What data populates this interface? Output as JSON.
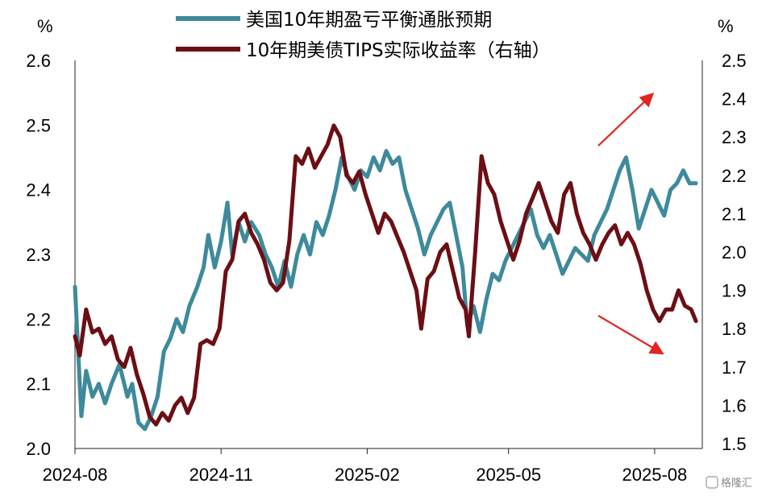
{
  "chart_data": {
    "type": "line",
    "left_unit": "%",
    "right_unit": "%",
    "x_tick_labels": [
      "2024-08",
      "2024-11",
      "2025-02",
      "2025-05",
      "2025-08"
    ],
    "x_tick_dates": [
      "2024-08-01",
      "2024-11-01",
      "2025-02-01",
      "2025-05-01",
      "2025-08-01"
    ],
    "x_range": [
      "2024-08-01",
      "2025-08-31"
    ],
    "y_left_ticks": [
      "2.0",
      "2.1",
      "2.2",
      "2.3",
      "2.4",
      "2.5",
      "2.6"
    ],
    "y_left_range": [
      2.0,
      2.6
    ],
    "y_right_ticks": [
      "1.5",
      "1.6",
      "1.7",
      "1.8",
      "1.9",
      "2.0",
      "2.1",
      "2.2",
      "2.3",
      "2.4",
      "2.5"
    ],
    "y_right_range": [
      1.5,
      2.5
    ],
    "legend_position": "top",
    "series": [
      {
        "name": "美国10年期盈亏平衡通胀预期",
        "axis": "left",
        "color": "#3E8A9C",
        "points": [
          [
            "2024-08-01",
            2.25
          ],
          [
            "2024-08-05",
            2.05
          ],
          [
            "2024-08-08",
            2.12
          ],
          [
            "2024-08-12",
            2.08
          ],
          [
            "2024-08-16",
            2.1
          ],
          [
            "2024-08-20",
            2.07
          ],
          [
            "2024-08-24",
            2.1
          ],
          [
            "2024-08-29",
            2.13
          ],
          [
            "2024-09-03",
            2.08
          ],
          [
            "2024-09-06",
            2.1
          ],
          [
            "2024-09-10",
            2.04
          ],
          [
            "2024-09-14",
            2.03
          ],
          [
            "2024-09-18",
            2.05
          ],
          [
            "2024-09-22",
            2.08
          ],
          [
            "2024-09-26",
            2.15
          ],
          [
            "2024-09-30",
            2.17
          ],
          [
            "2024-10-04",
            2.2
          ],
          [
            "2024-10-08",
            2.18
          ],
          [
            "2024-10-12",
            2.22
          ],
          [
            "2024-10-17",
            2.25
          ],
          [
            "2024-10-21",
            2.28
          ],
          [
            "2024-10-24",
            2.33
          ],
          [
            "2024-10-28",
            2.28
          ],
          [
            "2024-11-01",
            2.32
          ],
          [
            "2024-11-05",
            2.38
          ],
          [
            "2024-11-08",
            2.3
          ],
          [
            "2024-11-12",
            2.35
          ],
          [
            "2024-11-16",
            2.32
          ],
          [
            "2024-11-20",
            2.35
          ],
          [
            "2024-11-25",
            2.33
          ],
          [
            "2024-11-29",
            2.3
          ],
          [
            "2024-12-03",
            2.28
          ],
          [
            "2024-12-07",
            2.25
          ],
          [
            "2024-12-11",
            2.29
          ],
          [
            "2024-12-15",
            2.25
          ],
          [
            "2024-12-19",
            2.3
          ],
          [
            "2024-12-23",
            2.33
          ],
          [
            "2024-12-27",
            2.3
          ],
          [
            "2024-12-31",
            2.35
          ],
          [
            "2025-01-04",
            2.33
          ],
          [
            "2025-01-08",
            2.36
          ],
          [
            "2025-01-12",
            2.4
          ],
          [
            "2025-01-16",
            2.45
          ],
          [
            "2025-01-20",
            2.42
          ],
          [
            "2025-01-24",
            2.4
          ],
          [
            "2025-01-28",
            2.43
          ],
          [
            "2025-02-01",
            2.42
          ],
          [
            "2025-02-05",
            2.45
          ],
          [
            "2025-02-09",
            2.43
          ],
          [
            "2025-02-13",
            2.46
          ],
          [
            "2025-02-17",
            2.44
          ],
          [
            "2025-02-21",
            2.45
          ],
          [
            "2025-02-25",
            2.4
          ],
          [
            "2025-03-01",
            2.37
          ],
          [
            "2025-03-05",
            2.34
          ],
          [
            "2025-03-09",
            2.3
          ],
          [
            "2025-03-13",
            2.33
          ],
          [
            "2025-03-17",
            2.35
          ],
          [
            "2025-03-21",
            2.37
          ],
          [
            "2025-03-25",
            2.38
          ],
          [
            "2025-03-29",
            2.33
          ],
          [
            "2025-04-02",
            2.28
          ],
          [
            "2025-04-05",
            2.19
          ],
          [
            "2025-04-09",
            2.22
          ],
          [
            "2025-04-13",
            2.18
          ],
          [
            "2025-04-17",
            2.23
          ],
          [
            "2025-04-21",
            2.27
          ],
          [
            "2025-04-25",
            2.26
          ],
          [
            "2025-04-29",
            2.29
          ],
          [
            "2025-05-03",
            2.31
          ],
          [
            "2025-05-07",
            2.33
          ],
          [
            "2025-05-11",
            2.35
          ],
          [
            "2025-05-15",
            2.37
          ],
          [
            "2025-05-19",
            2.33
          ],
          [
            "2025-05-23",
            2.31
          ],
          [
            "2025-05-27",
            2.33
          ],
          [
            "2025-05-31",
            2.3
          ],
          [
            "2025-06-04",
            2.27
          ],
          [
            "2025-06-08",
            2.29
          ],
          [
            "2025-06-12",
            2.31
          ],
          [
            "2025-06-16",
            2.3
          ],
          [
            "2025-06-20",
            2.29
          ],
          [
            "2025-06-24",
            2.33
          ],
          [
            "2025-06-28",
            2.35
          ],
          [
            "2025-07-02",
            2.37
          ],
          [
            "2025-07-06",
            2.4
          ],
          [
            "2025-07-10",
            2.43
          ],
          [
            "2025-07-14",
            2.45
          ],
          [
            "2025-07-18",
            2.4
          ],
          [
            "2025-07-22",
            2.34
          ],
          [
            "2025-07-26",
            2.37
          ],
          [
            "2025-07-30",
            2.4
          ],
          [
            "2025-08-03",
            2.38
          ],
          [
            "2025-08-07",
            2.36
          ],
          [
            "2025-08-11",
            2.4
          ],
          [
            "2025-08-15",
            2.41
          ],
          [
            "2025-08-19",
            2.43
          ],
          [
            "2025-08-23",
            2.41
          ],
          [
            "2025-08-27",
            2.41
          ]
        ]
      },
      {
        "name": "10年期美债TIPS实际收益率（右轴）",
        "axis": "right",
        "color": "#6B0F14",
        "points": [
          [
            "2024-08-01",
            1.78
          ],
          [
            "2024-08-04",
            1.73
          ],
          [
            "2024-08-08",
            1.85
          ],
          [
            "2024-08-12",
            1.79
          ],
          [
            "2024-08-16",
            1.8
          ],
          [
            "2024-08-20",
            1.76
          ],
          [
            "2024-08-24",
            1.78
          ],
          [
            "2024-08-28",
            1.72
          ],
          [
            "2024-09-01",
            1.7
          ],
          [
            "2024-09-05",
            1.75
          ],
          [
            "2024-09-09",
            1.68
          ],
          [
            "2024-09-13",
            1.63
          ],
          [
            "2024-09-17",
            1.57
          ],
          [
            "2024-09-21",
            1.55
          ],
          [
            "2024-09-25",
            1.58
          ],
          [
            "2024-09-29",
            1.56
          ],
          [
            "2024-10-03",
            1.6
          ],
          [
            "2024-10-07",
            1.62
          ],
          [
            "2024-10-11",
            1.58
          ],
          [
            "2024-10-15",
            1.62
          ],
          [
            "2024-10-19",
            1.76
          ],
          [
            "2024-10-23",
            1.77
          ],
          [
            "2024-10-27",
            1.76
          ],
          [
            "2024-10-31",
            1.8
          ],
          [
            "2024-11-04",
            1.95
          ],
          [
            "2024-11-08",
            1.98
          ],
          [
            "2024-11-12",
            2.08
          ],
          [
            "2024-11-16",
            2.1
          ],
          [
            "2024-11-20",
            2.05
          ],
          [
            "2024-11-24",
            2.02
          ],
          [
            "2024-11-28",
            1.98
          ],
          [
            "2024-12-02",
            1.92
          ],
          [
            "2024-12-06",
            1.9
          ],
          [
            "2024-12-10",
            1.92
          ],
          [
            "2024-12-14",
            2.03
          ],
          [
            "2024-12-18",
            2.25
          ],
          [
            "2024-12-22",
            2.23
          ],
          [
            "2024-12-26",
            2.27
          ],
          [
            "2024-12-30",
            2.22
          ],
          [
            "2025-01-03",
            2.25
          ],
          [
            "2025-01-07",
            2.28
          ],
          [
            "2025-01-11",
            2.33
          ],
          [
            "2025-01-15",
            2.3
          ],
          [
            "2025-01-19",
            2.2
          ],
          [
            "2025-01-23",
            2.18
          ],
          [
            "2025-01-27",
            2.21
          ],
          [
            "2025-01-31",
            2.15
          ],
          [
            "2025-02-04",
            2.1
          ],
          [
            "2025-02-08",
            2.05
          ],
          [
            "2025-02-12",
            2.1
          ],
          [
            "2025-02-16",
            2.08
          ],
          [
            "2025-02-20",
            2.04
          ],
          [
            "2025-02-24",
            2.0
          ],
          [
            "2025-02-28",
            1.95
          ],
          [
            "2025-03-04",
            1.9
          ],
          [
            "2025-03-07",
            1.8
          ],
          [
            "2025-03-11",
            1.93
          ],
          [
            "2025-03-15",
            1.95
          ],
          [
            "2025-03-19",
            2.0
          ],
          [
            "2025-03-23",
            2.02
          ],
          [
            "2025-03-27",
            1.95
          ],
          [
            "2025-03-31",
            1.88
          ],
          [
            "2025-04-04",
            1.85
          ],
          [
            "2025-04-06",
            1.78
          ],
          [
            "2025-04-10",
            2.0
          ],
          [
            "2025-04-14",
            2.25
          ],
          [
            "2025-04-18",
            2.18
          ],
          [
            "2025-04-22",
            2.15
          ],
          [
            "2025-04-26",
            2.08
          ],
          [
            "2025-04-30",
            2.03
          ],
          [
            "2025-05-04",
            1.98
          ],
          [
            "2025-05-08",
            2.03
          ],
          [
            "2025-05-12",
            2.1
          ],
          [
            "2025-05-16",
            2.14
          ],
          [
            "2025-05-20",
            2.18
          ],
          [
            "2025-05-24",
            2.13
          ],
          [
            "2025-05-28",
            2.08
          ],
          [
            "2025-06-01",
            2.05
          ],
          [
            "2025-06-05",
            2.15
          ],
          [
            "2025-06-09",
            2.18
          ],
          [
            "2025-06-13",
            2.1
          ],
          [
            "2025-06-17",
            2.05
          ],
          [
            "2025-06-21",
            2.02
          ],
          [
            "2025-06-25",
            1.98
          ],
          [
            "2025-06-29",
            2.02
          ],
          [
            "2025-07-03",
            2.05
          ],
          [
            "2025-07-07",
            2.07
          ],
          [
            "2025-07-11",
            2.02
          ],
          [
            "2025-07-15",
            2.05
          ],
          [
            "2025-07-19",
            2.02
          ],
          [
            "2025-07-23",
            1.97
          ],
          [
            "2025-07-27",
            1.9
          ],
          [
            "2025-07-31",
            1.85
          ],
          [
            "2025-08-04",
            1.82
          ],
          [
            "2025-08-08",
            1.85
          ],
          [
            "2025-08-12",
            1.85
          ],
          [
            "2025-08-16",
            1.9
          ],
          [
            "2025-08-20",
            1.86
          ],
          [
            "2025-08-24",
            1.85
          ],
          [
            "2025-08-27",
            1.82
          ]
        ]
      }
    ],
    "annotations": [
      {
        "type": "arrow",
        "direction": "up",
        "color": "#E0271F"
      },
      {
        "type": "arrow",
        "direction": "down",
        "color": "#E0271F"
      }
    ]
  },
  "watermark": "格隆汇"
}
